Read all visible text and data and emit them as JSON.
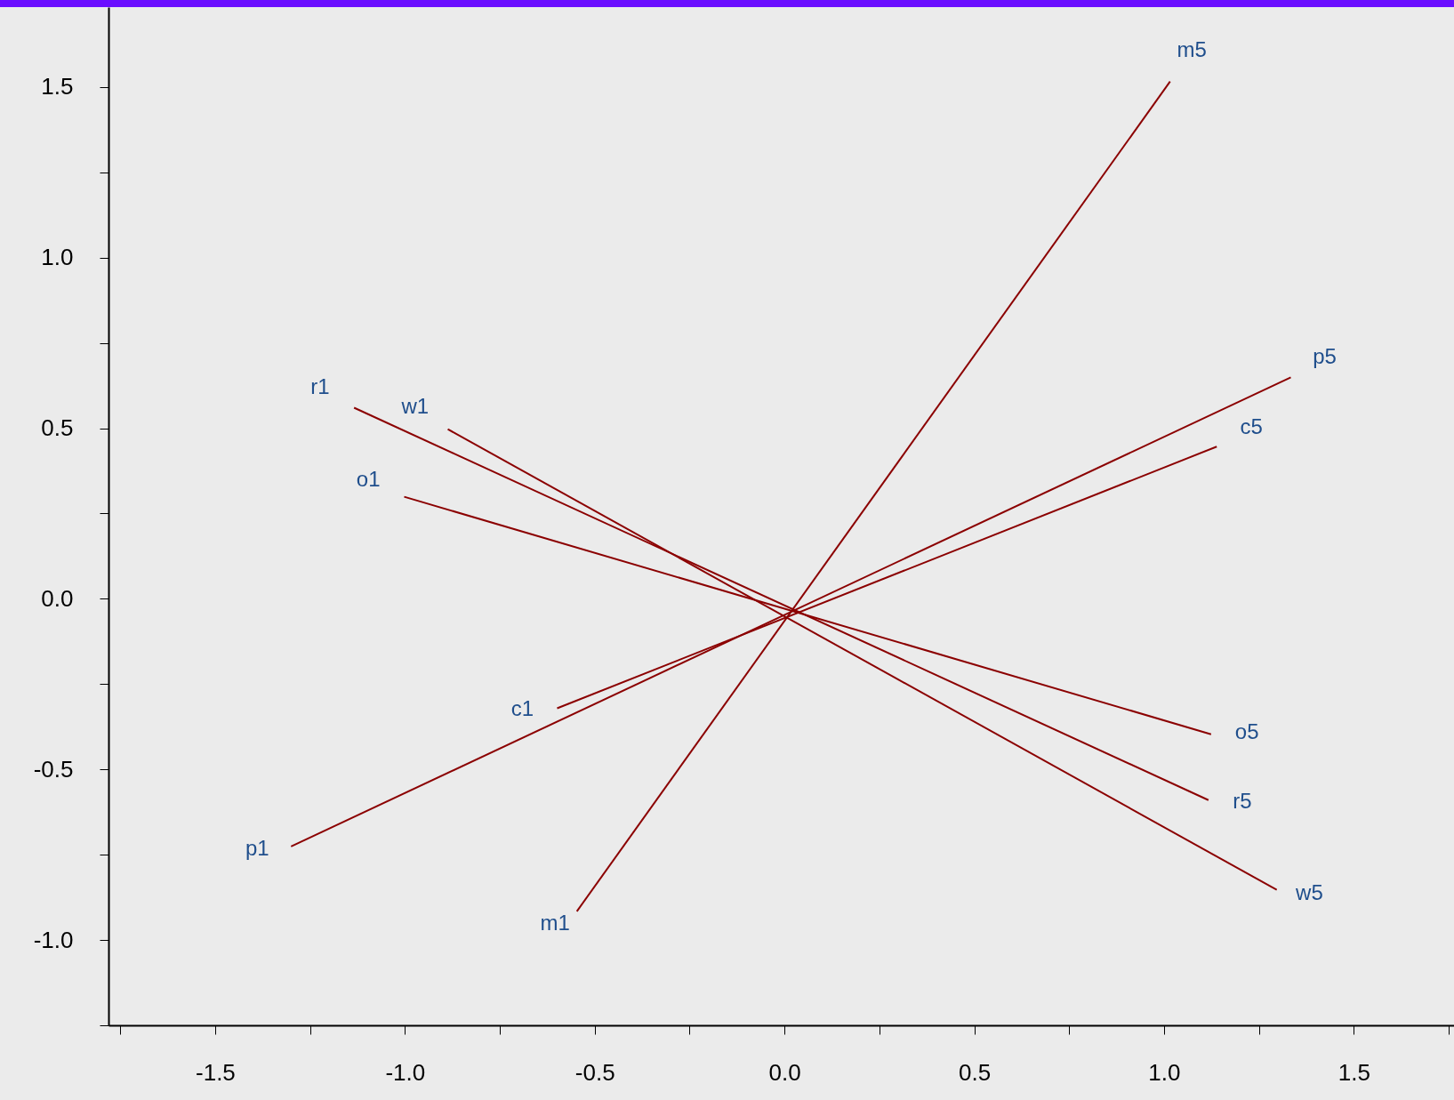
{
  "chart_data": {
    "type": "line",
    "series": [
      {
        "color": "#8b0000",
        "x": [
          -0.547,
          1.016
        ],
        "values": [
          -0.916,
          1.516
        ]
      },
      {
        "color": "#8b0000",
        "x": [
          -1.3,
          1.334
        ],
        "values": [
          -0.726,
          0.649
        ]
      },
      {
        "color": "#8b0000",
        "x": [
          -0.599,
          1.139
        ],
        "values": [
          -0.321,
          0.446
        ]
      },
      {
        "color": "#8b0000",
        "x": [
          -1.134,
          1.117
        ],
        "values": [
          0.56,
          -0.59
        ]
      },
      {
        "color": "#8b0000",
        "x": [
          -0.887,
          1.297
        ],
        "values": [
          0.497,
          -0.853
        ]
      },
      {
        "color": "#8b0000",
        "x": [
          -1.002,
          1.124
        ],
        "values": [
          0.299,
          -0.397
        ]
      }
    ],
    "annotations": [
      {
        "text": "m5",
        "x": 1.016,
        "y": 1.516
      },
      {
        "text": "p5",
        "x": 1.334,
        "y": 0.649
      },
      {
        "text": "c5",
        "x": 1.139,
        "y": 0.446
      },
      {
        "text": "o5",
        "x": 1.124,
        "y": -0.397
      },
      {
        "text": "r5",
        "x": 1.117,
        "y": -0.59
      },
      {
        "text": "w5",
        "x": 1.297,
        "y": -0.853
      },
      {
        "text": "r1",
        "x": -1.134,
        "y": 0.56
      },
      {
        "text": "w1",
        "x": -0.887,
        "y": 0.497
      },
      {
        "text": "o1",
        "x": -1.002,
        "y": 0.299
      },
      {
        "text": "c1",
        "x": -0.599,
        "y": -0.321
      },
      {
        "text": "p1",
        "x": -1.3,
        "y": -0.726
      },
      {
        "text": "m1",
        "x": -0.547,
        "y": -0.916
      }
    ],
    "xlim": [
      -1.781,
      1.764
    ],
    "ylim": [
      -1.25,
      1.734
    ],
    "xticks": [
      {
        "value": -1.75,
        "label": null
      },
      -1.5,
      {
        "value": -1.25,
        "label": null
      },
      {
        "value": -1,
        "label": "-1.0"
      },
      {
        "value": -0.75,
        "label": null
      },
      -0.5,
      {
        "value": -0.25,
        "label": null
      },
      {
        "value": 0,
        "label": "0.0"
      },
      {
        "value": 0.25,
        "label": null
      },
      0.5,
      {
        "value": 0.75,
        "label": null
      },
      {
        "value": 1,
        "label": "1.0"
      },
      {
        "value": 1.25,
        "label": null
      },
      1.5,
      {
        "value": 1.75,
        "label": null
      }
    ],
    "yticks": [
      {
        "value": -1.25,
        "label": null
      },
      {
        "value": -1,
        "label": "-1.0"
      },
      {
        "value": -0.75,
        "label": null
      },
      -0.5,
      {
        "value": -0.25,
        "label": null
      },
      {
        "value": 0,
        "label": "0.0"
      },
      {
        "value": 0.25,
        "label": null
      },
      0.5,
      {
        "value": 0.75,
        "label": null
      },
      {
        "value": 1,
        "label": "1.0"
      },
      {
        "value": 1.25,
        "label": null
      },
      1.5
    ]
  }
}
